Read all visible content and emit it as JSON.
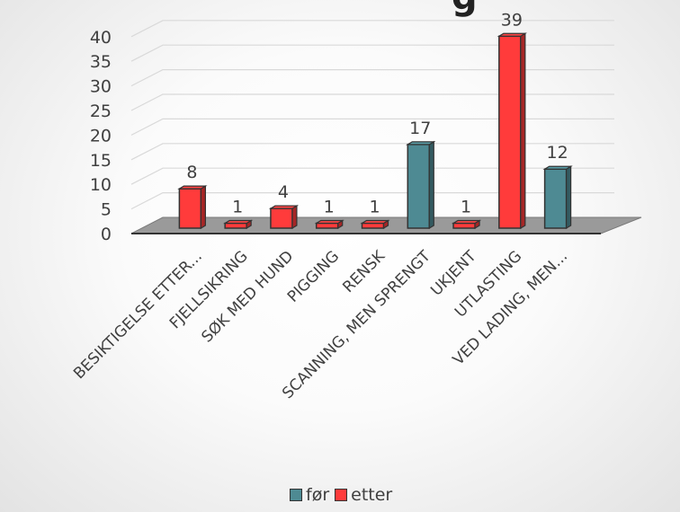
{
  "chart_data": {
    "type": "bar",
    "title_fragment": "g",
    "categories": [
      "BESIKTIGELSE ETTER...",
      "FJELLSIKRING",
      "SØK MED HUND",
      "PIGGING",
      "RENSK",
      "SCANNING, MEN SPRENGT",
      "UKJENT",
      "UTLASTING",
      "VED LADING, MEN..."
    ],
    "series": [
      {
        "name": "før",
        "color": "#4E8A93",
        "values": [
          null,
          null,
          null,
          null,
          null,
          17,
          null,
          null,
          12
        ]
      },
      {
        "name": "etter",
        "color": "#FF3B3B",
        "values": [
          8,
          1,
          4,
          1,
          1,
          null,
          1,
          39,
          null
        ]
      }
    ],
    "ylim": [
      0,
      40
    ],
    "yticks": [
      0,
      5,
      10,
      15,
      20,
      25,
      30,
      35,
      40
    ],
    "grid": true,
    "legend_position": "bottom",
    "style": "3d-column"
  }
}
